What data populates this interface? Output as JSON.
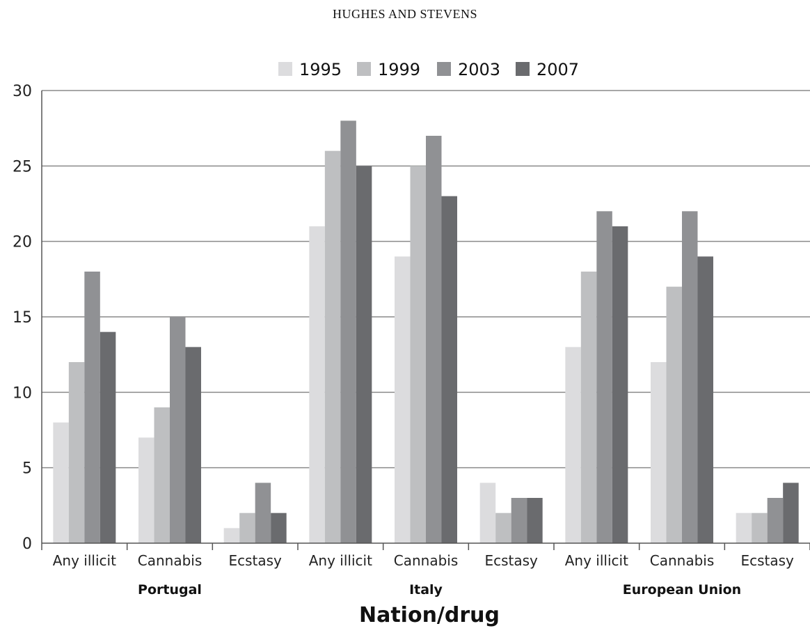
{
  "header": {
    "running_head": "HUGHES AND STEVENS"
  },
  "chart_data": {
    "type": "bar",
    "xlabel": "Nation/drug",
    "ylabel": "",
    "ylim": [
      0,
      30
    ],
    "yticks": [
      "0",
      "5",
      "10",
      "15",
      "20",
      "25",
      "30"
    ],
    "grid": true,
    "legend_position": "top",
    "categories": [
      "Any illicit",
      "Cannabis",
      "Ecstasy",
      "Any illicit",
      "Cannabis",
      "Ecstasy",
      "Any illicit",
      "Cannabis",
      "Ecstasy"
    ],
    "groups": [
      "Portugal",
      "Italy",
      "European Union"
    ],
    "series": [
      {
        "name": "1995",
        "color": "#dcdcde",
        "values": [
          8,
          7,
          1,
          21,
          19,
          4,
          13,
          12,
          2
        ]
      },
      {
        "name": "1999",
        "color": "#bebfc1",
        "values": [
          12,
          9,
          2,
          26,
          25,
          2,
          18,
          17,
          2
        ]
      },
      {
        "name": "2003",
        "color": "#909194",
        "values": [
          18,
          15,
          4,
          28,
          27,
          3,
          22,
          22,
          3
        ]
      },
      {
        "name": "2007",
        "color": "#6a6b6e",
        "values": [
          14,
          13,
          2,
          25,
          23,
          3,
          21,
          19,
          4
        ]
      }
    ]
  }
}
